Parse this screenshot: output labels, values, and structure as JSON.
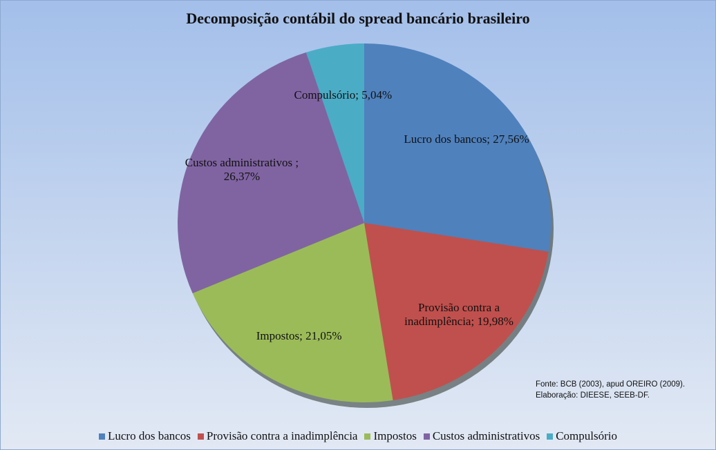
{
  "chart_data": {
    "type": "pie",
    "title": "Decomposição contábil do spread bancário brasileiro",
    "categories": [
      "Lucro dos bancos",
      "Provisão contra a inadimplência",
      "Impostos",
      "Custos administrativos",
      "Compulsório"
    ],
    "values": [
      27.56,
      19.98,
      21.05,
      26.37,
      5.04
    ],
    "value_labels": [
      "Lucro dos bancos; 27,56%",
      "Provisão contra a inadimplência; 19,98%",
      "Impostos; 21,05%",
      "Custos administrativos ; 26,37%",
      "Compulsório; 5,04%"
    ],
    "colors": [
      "#4f81bd",
      "#c0504d",
      "#9bbb59",
      "#8064a2",
      "#4bacc6"
    ],
    "legend": "bottom",
    "source": "Fonte: BCB (2003), apud OREIRO (2009). Elaboração: DIEESE, SEEB-DF."
  }
}
